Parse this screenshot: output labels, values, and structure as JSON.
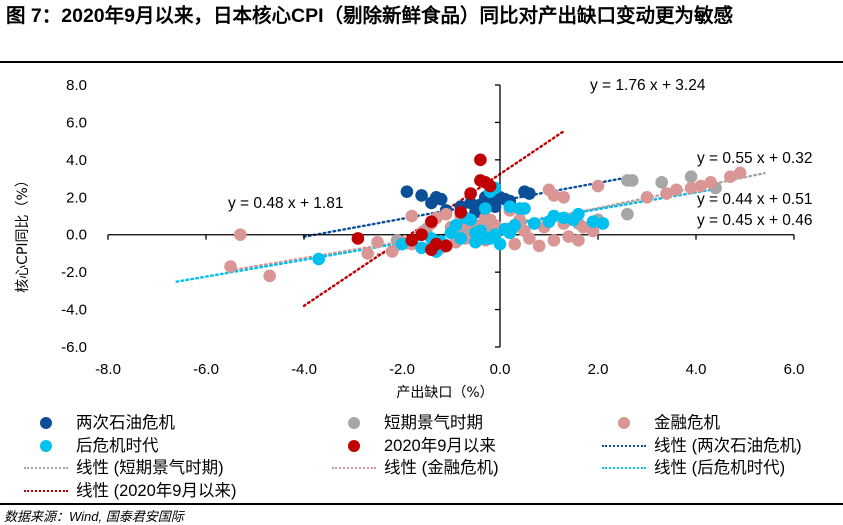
{
  "title": "图 7：2020年9月以来，日本核心CPI（剔除新鲜食品）同比对产出缺口变动更为敏感",
  "source": "数据来源：Wind, 国泰君安国际",
  "chart_data": {
    "type": "scatter",
    "title": "图 7：2020年9月以来，日本核心CPI（剔除新鲜食品）同比对产出缺口变动更为敏感",
    "xlabel": "产出缺口（%）",
    "ylabel": "核心CPI同比（%）",
    "xlim": [
      -8,
      6
    ],
    "ylim": [
      -6,
      8
    ],
    "x_ticks": [
      "-8.0",
      "-6.0",
      "-4.0",
      "-2.0",
      "0.0",
      "2.0",
      "4.0",
      "6.0"
    ],
    "y_ticks": [
      "8.0",
      "6.0",
      "4.0",
      "2.0",
      "0.0",
      "-2.0",
      "-4.0",
      "-6.0"
    ],
    "grid": false,
    "legend_position": "bottom",
    "series": [
      {
        "name": "两次石油危机",
        "color": "#0B4F99",
        "points": [
          [
            -1.9,
            2.3
          ],
          [
            -1.6,
            2.1
          ],
          [
            -1.2,
            1.9
          ],
          [
            -1.4,
            1.7
          ],
          [
            -0.8,
            1.5
          ],
          [
            -1.3,
            2.0
          ],
          [
            -0.3,
            2.0
          ],
          [
            -0.2,
            1.8
          ],
          [
            -0.1,
            2.2
          ],
          [
            0.0,
            2.0
          ],
          [
            -0.4,
            1.6
          ],
          [
            0.2,
            1.8
          ],
          [
            0.5,
            2.3
          ],
          [
            0.6,
            2.2
          ],
          [
            -0.2,
            2.1
          ],
          [
            -0.1,
            1.5
          ],
          [
            -0.5,
            1.2
          ],
          [
            0.1,
            1.9
          ],
          [
            -0.6,
            1.7
          ],
          [
            -1.1,
            1.3
          ]
        ]
      },
      {
        "name": "短期景气时期",
        "color": "#A6A6A6",
        "points": [
          [
            2.6,
            2.9
          ],
          [
            2.7,
            2.9
          ],
          [
            3.3,
            2.8
          ],
          [
            3.9,
            3.1
          ],
          [
            4.4,
            2.5
          ],
          [
            2.6,
            1.1
          ],
          [
            1.5,
            0.9
          ],
          [
            1.6,
            0.6
          ],
          [
            2.0,
            0.8
          ],
          [
            -0.4,
            0.5
          ],
          [
            -0.8,
            0.1
          ],
          [
            -1.5,
            0.3
          ],
          [
            -0.6,
            0.2
          ],
          [
            1.0,
            0.7
          ],
          [
            -2.1,
            -0.3
          ],
          [
            0.3,
            0.4
          ],
          [
            -0.2,
            0.3
          ]
        ]
      },
      {
        "name": "金融危机",
        "color": "#D99694",
        "points": [
          [
            -5.3,
            0.0
          ],
          [
            -5.5,
            -1.7
          ],
          [
            -4.7,
            -2.2
          ],
          [
            -1.8,
            1.0
          ],
          [
            -0.8,
            1.0
          ],
          [
            -0.5,
            0.5
          ],
          [
            -1.4,
            0.6
          ],
          [
            -2.7,
            -1.0
          ],
          [
            -2.2,
            -0.9
          ],
          [
            -1.8,
            -0.5
          ],
          [
            -1.2,
            -0.7
          ],
          [
            -0.7,
            -0.2
          ],
          [
            -0.3,
            -0.3
          ],
          [
            0.2,
            1.3
          ],
          [
            -0.3,
            0.9
          ],
          [
            0.5,
            0.2
          ],
          [
            0.9,
            0.4
          ],
          [
            1.1,
            -0.3
          ],
          [
            1.4,
            -0.1
          ],
          [
            1.6,
            -0.3
          ],
          [
            1.7,
            0.4
          ],
          [
            2.0,
            2.6
          ],
          [
            3.0,
            2.0
          ],
          [
            3.4,
            2.2
          ],
          [
            3.9,
            2.5
          ],
          [
            4.3,
            2.8
          ],
          [
            4.7,
            3.1
          ],
          [
            4.9,
            3.3
          ],
          [
            4.1,
            2.6
          ],
          [
            3.6,
            2.4
          ],
          [
            1.0,
            2.4
          ],
          [
            1.1,
            2.1
          ],
          [
            1.3,
            2.0
          ],
          [
            -1.0,
            0.4
          ],
          [
            -0.4,
            0.0
          ],
          [
            -2.5,
            -0.4
          ],
          [
            -0.9,
            -0.4
          ],
          [
            -1.6,
            0.1
          ],
          [
            0.6,
            -0.2
          ],
          [
            0.8,
            -0.6
          ],
          [
            1.4,
            0.8
          ],
          [
            -0.1,
            0.5
          ],
          [
            -1.1,
            1.1
          ],
          [
            -1.3,
            0.9
          ],
          [
            0.4,
            0.8
          ],
          [
            1.9,
            0.2
          ],
          [
            -0.7,
            0.6
          ],
          [
            -2.0,
            -0.4
          ],
          [
            -0.2,
            0.8
          ],
          [
            0.3,
            -0.5
          ],
          [
            1.3,
            0.6
          ]
        ]
      },
      {
        "name": "后危机时代",
        "color": "#00C0F0",
        "points": [
          [
            -3.7,
            -1.3
          ],
          [
            -2.0,
            -0.5
          ],
          [
            -1.3,
            -0.9
          ],
          [
            -1.1,
            -0.6
          ],
          [
            -0.3,
            -0.2
          ],
          [
            -0.1,
            0.0
          ],
          [
            0.2,
            0.1
          ],
          [
            -0.5,
            0.1
          ],
          [
            -0.8,
            -0.2
          ],
          [
            -1.4,
            -0.2
          ],
          [
            -1.6,
            -0.7
          ],
          [
            -1.2,
            -0.4
          ],
          [
            -0.9,
            0.5
          ],
          [
            -0.6,
            0.8
          ],
          [
            -0.4,
            0.2
          ],
          [
            0.3,
            0.5
          ],
          [
            0.7,
            0.6
          ],
          [
            1.0,
            0.7
          ],
          [
            1.3,
            0.9
          ],
          [
            1.5,
            0.8
          ],
          [
            1.9,
            0.7
          ],
          [
            2.1,
            0.6
          ],
          [
            0.4,
            1.4
          ],
          [
            0.5,
            1.4
          ],
          [
            -0.2,
            2.3
          ],
          [
            -0.1,
            2.5
          ],
          [
            0.2,
            1.5
          ],
          [
            -0.3,
            1.4
          ],
          [
            -0.7,
            0.9
          ],
          [
            0.1,
            0.3
          ],
          [
            1.1,
            1.0
          ],
          [
            1.6,
            1.1
          ],
          [
            -0.5,
            -0.4
          ],
          [
            -0.2,
            -0.2
          ],
          [
            0.0,
            -0.5
          ],
          [
            -1.0,
            0.1
          ]
        ]
      },
      {
        "name": "2020年9月以来",
        "color": "#C00000",
        "points": [
          [
            -0.4,
            4.0
          ],
          [
            -0.4,
            2.9
          ],
          [
            -0.3,
            2.8
          ],
          [
            -0.2,
            2.6
          ],
          [
            -0.8,
            1.2
          ],
          [
            -1.4,
            0.7
          ],
          [
            -1.6,
            0.0
          ],
          [
            -1.8,
            -0.3
          ],
          [
            -2.9,
            -0.2
          ],
          [
            -1.3,
            -0.5
          ],
          [
            -1.4,
            -0.8
          ],
          [
            -1.1,
            -0.6
          ],
          [
            -0.6,
            2.2
          ]
        ]
      }
    ],
    "trendlines": [
      {
        "name": "线性 (两次石油危机)",
        "series": "两次石油危机",
        "color": "#0B4F99",
        "slope": 0.48,
        "intercept": 1.81,
        "x_range": [
          -4.0,
          2.6
        ],
        "equation": "y = 0.48 x + 1.81"
      },
      {
        "name": "线性 (短期景气时期)",
        "series": "短期景气时期",
        "color": "#A6A6A6",
        "slope": 0.55,
        "intercept": 0.32,
        "x_range": [
          -2.5,
          5.4
        ],
        "equation": "y = 0.55 x + 0.32"
      },
      {
        "name": "线性 (金融危机)",
        "series": "金融危机",
        "color": "#D99694",
        "slope": 0.44,
        "intercept": 0.51,
        "x_range": [
          -5.5,
          4.5
        ],
        "equation": "y = 0.44 x + 0.51"
      },
      {
        "name": "线性 (后危机时代)",
        "series": "后危机时代",
        "color": "#00C0F0",
        "slope": 0.45,
        "intercept": 0.46,
        "x_range": [
          -6.6,
          4.5
        ],
        "equation": "y = 0.45 x + 0.46"
      },
      {
        "name": "线性 (2020年9月以来)",
        "series": "2020年9月以来",
        "color": "#C00000",
        "slope": 1.76,
        "intercept": 3.24,
        "x_range": [
          -4.0,
          1.3
        ],
        "equation": "y = 1.76 x + 3.24"
      }
    ]
  },
  "legend": [
    {
      "label": "两次石油危机",
      "kind": "dot",
      "color": "#0B4F99"
    },
    {
      "label": "短期景气时期",
      "kind": "dot",
      "color": "#A6A6A6"
    },
    {
      "label": "金融危机",
      "kind": "dot",
      "color": "#D99694"
    },
    {
      "label": "后危机时代",
      "kind": "dot",
      "color": "#00C0F0"
    },
    {
      "label": "2020年9月以来",
      "kind": "dot",
      "color": "#C00000"
    },
    {
      "label": "线性 (两次石油危机)",
      "kind": "line",
      "color": "#0B4F99"
    },
    {
      "label": "线性 (短期景气时期)",
      "kind": "line",
      "color": "#A6A6A6"
    },
    {
      "label": "线性 (金融危机)",
      "kind": "line",
      "color": "#D99694"
    },
    {
      "label": "线性 (后危机时代)",
      "kind": "line",
      "color": "#00C0F0"
    },
    {
      "label": "线性 (2020年9月以来)",
      "kind": "line",
      "color": "#C00000"
    }
  ]
}
